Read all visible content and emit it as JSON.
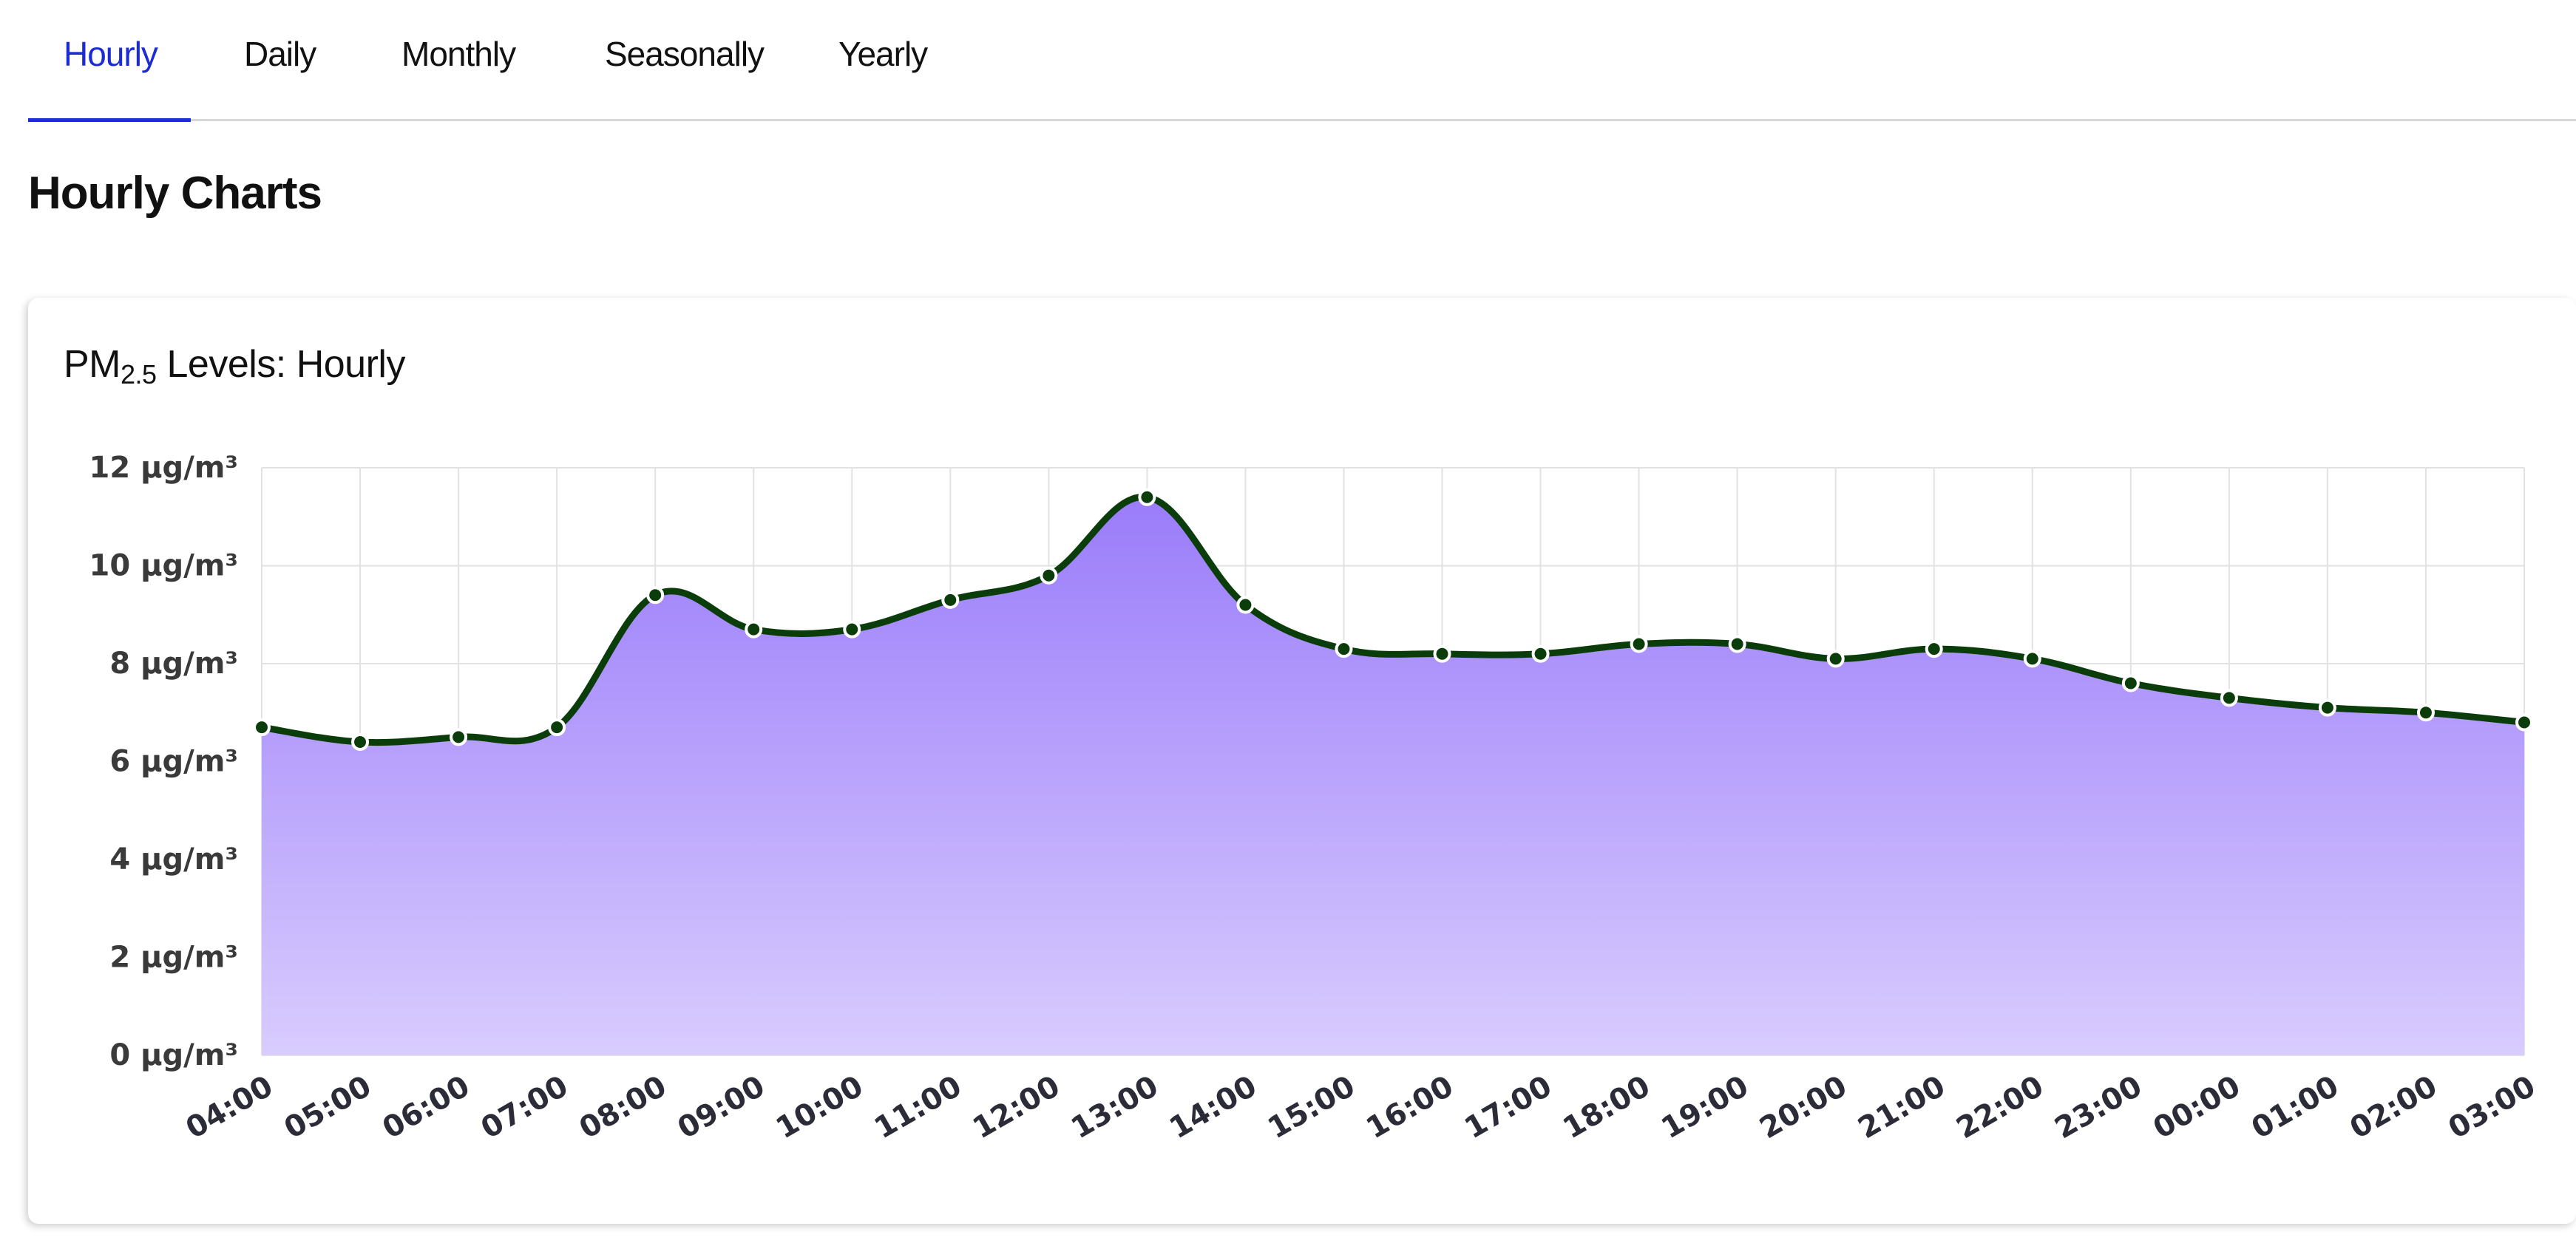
{
  "tabs": [
    {
      "label": "Hourly",
      "active": true
    },
    {
      "label": "Daily",
      "active": false
    },
    {
      "label": "Monthly",
      "active": false
    },
    {
      "label": "Seasonally",
      "active": false
    },
    {
      "label": "Yearly",
      "active": false
    }
  ],
  "page_title": "Hourly Charts",
  "card": {
    "title_main": "PM",
    "title_sub": "2.5",
    "title_rest": " Levels: Hourly"
  },
  "colors": {
    "active_tab": "#1b2bd6",
    "line": "#0b3d0b",
    "area_top": "#9a7cfa",
    "area_bottom": "#d9ccfe",
    "point_fill": "#0b3d0b",
    "point_stroke": "#ffffff"
  },
  "chart_data": {
    "type": "area",
    "title": "PM2.5 Levels: Hourly",
    "x": [
      "04:00",
      "05:00",
      "06:00",
      "07:00",
      "08:00",
      "09:00",
      "10:00",
      "11:00",
      "12:00",
      "13:00",
      "14:00",
      "15:00",
      "16:00",
      "17:00",
      "18:00",
      "19:00",
      "20:00",
      "21:00",
      "22:00",
      "23:00",
      "00:00",
      "01:00",
      "02:00",
      "03:00"
    ],
    "values": [
      6.7,
      6.4,
      6.5,
      6.7,
      9.4,
      8.7,
      8.7,
      9.3,
      9.8,
      11.4,
      9.2,
      8.3,
      8.2,
      8.2,
      8.4,
      8.4,
      8.1,
      8.3,
      8.1,
      7.6,
      7.3,
      7.1,
      7.0,
      6.8
    ],
    "ylim": [
      0,
      12
    ],
    "yticks": [
      0,
      2,
      4,
      6,
      8,
      10,
      12
    ],
    "y_unit": " µg/m³",
    "grid": true,
    "legend": "none"
  }
}
